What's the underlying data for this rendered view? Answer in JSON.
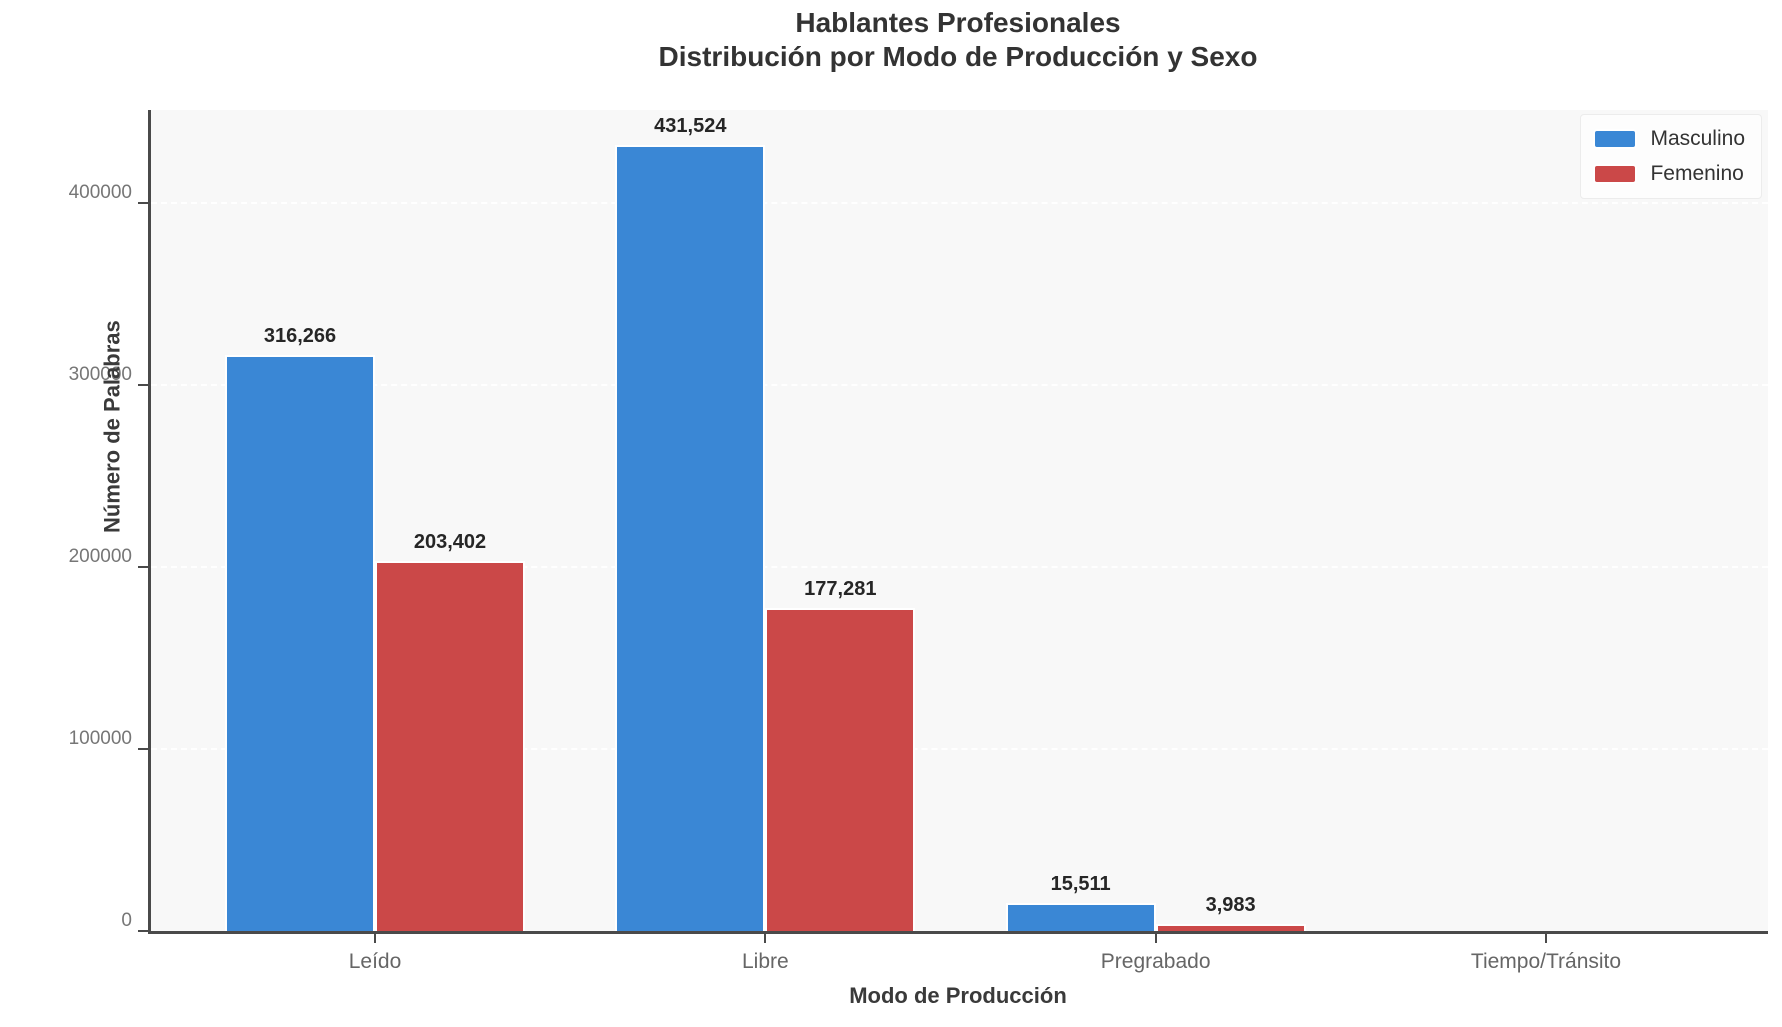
{
  "title": {
    "line1": "Hablantes Profesionales",
    "line2": "Distribución por Modo de Producción y Sexo"
  },
  "chart_data": {
    "type": "bar",
    "categories": [
      "Leído",
      "Libre",
      "Pregrabado",
      "Tiempo/Tránsito"
    ],
    "series": [
      {
        "name": "Masculino",
        "color": "#3a87d5",
        "values": [
          316266,
          431524,
          15511,
          0
        ],
        "labels": [
          "316,266",
          "431,524",
          "15,511",
          ""
        ]
      },
      {
        "name": "Femenino",
        "color": "#cb4848",
        "values": [
          203402,
          177281,
          3983,
          0
        ],
        "labels": [
          "203,402",
          "177,281",
          "3,983",
          ""
        ]
      }
    ],
    "xlabel": "Modo de Producción",
    "ylabel": "Número de Palabras",
    "ylim": [
      0,
      451000
    ],
    "yticks": [
      0,
      100000,
      200000,
      300000,
      400000
    ],
    "ytick_labels": [
      "0",
      "100000",
      "200000",
      "300000",
      "400000"
    ],
    "grid": "horizontal-dashed",
    "legend_position": "upper-right",
    "plot_background": "#f8f8f8",
    "spine_color": "#4a4a4a"
  }
}
